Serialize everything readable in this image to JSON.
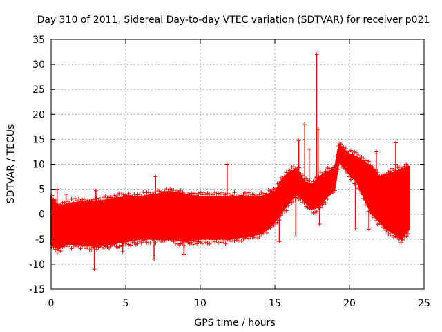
{
  "chart_data": {
    "type": "scatter",
    "title": "Day 310 of 2011, Sidereal Day-to-day VTEC variation (SDTVAR) for receiver p021",
    "xlabel": "GPS time / hours",
    "ylabel": "SDTVAR / TECUs",
    "xlim": [
      0,
      25
    ],
    "ylim": [
      -15,
      35
    ],
    "xticks": [
      0,
      5,
      10,
      15,
      20,
      25
    ],
    "yticks": [
      -15,
      -10,
      -5,
      0,
      5,
      10,
      15,
      20,
      25,
      30,
      35
    ],
    "grid": true,
    "color": "#ff0000",
    "marker": "+",
    "envelope": {
      "x": [
        0.0,
        0.5,
        1.0,
        2.0,
        3.0,
        4.0,
        5.0,
        6.0,
        7.0,
        8.0,
        9.0,
        10.0,
        11.0,
        12.0,
        13.0,
        14.0,
        14.5,
        15.0,
        15.5,
        16.0,
        16.5,
        17.0,
        17.5,
        18.0,
        18.5,
        19.0,
        19.3,
        19.6,
        20.0,
        20.5,
        21.0,
        21.5,
        22.0,
        22.5,
        23.0,
        23.5,
        24.0
      ],
      "upper": [
        3.5,
        1.5,
        2.0,
        2.5,
        2.5,
        3.0,
        3.5,
        3.5,
        4.0,
        4.5,
        4.0,
        3.5,
        3.5,
        3.5,
        3.5,
        3.5,
        4.0,
        4.5,
        7.0,
        8.5,
        9.0,
        6.5,
        6.0,
        7.5,
        8.5,
        9.0,
        14.0,
        13.0,
        12.0,
        11.5,
        10.5,
        9.5,
        7.5,
        8.0,
        8.5,
        9.0,
        9.5
      ],
      "lower": [
        -6.0,
        -7.0,
        -6.0,
        -6.0,
        -6.5,
        -6.0,
        -5.5,
        -5.0,
        -5.0,
        -5.0,
        -5.5,
        -5.0,
        -5.0,
        -5.0,
        -4.5,
        -4.0,
        -3.0,
        -1.5,
        0.5,
        2.5,
        4.0,
        2.5,
        1.0,
        1.5,
        3.5,
        5.0,
        10.5,
        9.5,
        8.0,
        6.5,
        3.0,
        0.0,
        -1.5,
        -3.0,
        -4.0,
        -5.0,
        -3.0
      ]
    },
    "outliers": [
      {
        "x": 0.4,
        "y": 5.0
      },
      {
        "x": 1.0,
        "y": 4.0
      },
      {
        "x": 2.9,
        "y": -11.0
      },
      {
        "x": 3.0,
        "y": 4.7
      },
      {
        "x": 4.8,
        "y": -7.5
      },
      {
        "x": 7.0,
        "y": 7.5
      },
      {
        "x": 6.9,
        "y": -9.0
      },
      {
        "x": 8.9,
        "y": -8.0
      },
      {
        "x": 11.8,
        "y": 10.0
      },
      {
        "x": 11.6,
        "y": 4.0
      },
      {
        "x": 15.3,
        "y": -5.5
      },
      {
        "x": 16.6,
        "y": 14.7
      },
      {
        "x": 16.4,
        "y": -4.0
      },
      {
        "x": 17.0,
        "y": 18.0
      },
      {
        "x": 17.3,
        "y": 13.0
      },
      {
        "x": 17.8,
        "y": 32.0
      },
      {
        "x": 17.9,
        "y": 17.0
      },
      {
        "x": 18.0,
        "y": -2.0
      },
      {
        "x": 19.4,
        "y": 14.0
      },
      {
        "x": 20.4,
        "y": -2.8
      },
      {
        "x": 21.3,
        "y": -3.0
      },
      {
        "x": 21.8,
        "y": 12.5
      },
      {
        "x": 23.1,
        "y": 14.3
      },
      {
        "x": 23.1,
        "y": 10.0
      },
      {
        "x": 23.5,
        "y": -5.0
      },
      {
        "x": 23.7,
        "y": 9.0
      }
    ]
  }
}
